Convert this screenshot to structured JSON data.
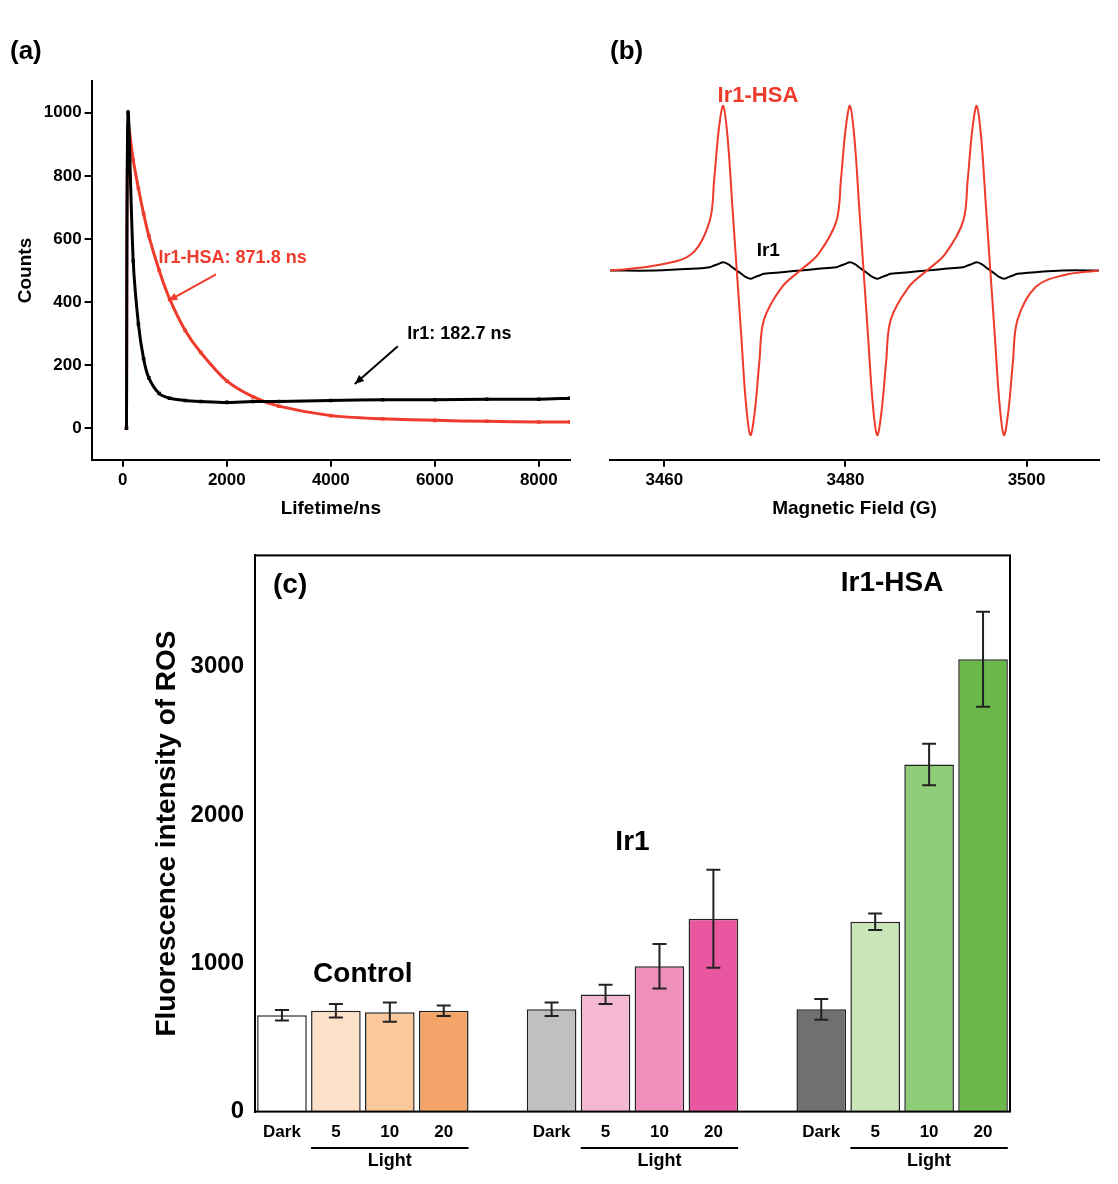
{
  "chart_data": [
    {
      "type": "line",
      "title": "(a)",
      "x_label": "Lifetime/ns",
      "y_label": "Counts",
      "x": [
        70,
        100,
        200,
        300,
        400,
        500,
        700,
        900,
        1200,
        1500,
        2000,
        2500,
        3000,
        4000,
        5000,
        6000,
        7000,
        8000,
        8600
      ],
      "series": [
        {
          "color": "#000000",
          "values": [
            0,
            1000,
            530,
            330,
            220,
            160,
            110,
            95,
            88,
            85,
            82,
            85,
            85,
            88,
            90,
            90,
            92,
            92,
            95
          ]
        },
        {
          "color": "#ee3b2c",
          "values": [
            0,
            960,
            850,
            760,
            680,
            610,
            500,
            410,
            310,
            240,
            150,
            100,
            70,
            40,
            30,
            25,
            22,
            20,
            20
          ]
        }
      ],
      "annotations": [
        {
          "text": "Ir1-HSA: 871.8 ns",
          "color": "#ee3b2c"
        },
        {
          "text": "Ir1: 182.7 ns",
          "color": "#000000"
        }
      ],
      "xlim": [
        -600,
        8600
      ],
      "xticks": [
        0,
        2000,
        4000,
        6000,
        8000
      ],
      "ylim": [
        -100,
        1100
      ],
      "yticks": [
        0,
        200,
        400,
        600,
        800,
        1000
      ],
      "grid": false,
      "marker": "square"
    },
    {
      "type": "line",
      "title": "(b)",
      "x_label": "Magnetic Field (G)",
      "x": [
        3454,
        3459,
        3463,
        3465,
        3465.5,
        3466,
        3466.5,
        3467,
        3467.5,
        3468,
        3468.5,
        3469,
        3469.5,
        3470,
        3470.5,
        3471,
        3473,
        3475,
        3477,
        3479,
        3479.5,
        3480,
        3480.5,
        3481,
        3481.5,
        3482,
        3482.5,
        3483,
        3483.5,
        3484,
        3484.5,
        3485,
        3487,
        3489,
        3491,
        3493,
        3493.5,
        3494,
        3494.5,
        3495,
        3495.5,
        3496,
        3496.5,
        3497,
        3497.5,
        3498,
        3498.5,
        3499,
        3501,
        3504,
        3508
      ],
      "series": [
        {
          "name": "Ir1-HSA",
          "color": "#ee3b2c",
          "values": [
            0,
            3,
            10,
            30,
            55,
            85,
            100,
            80,
            40,
            0,
            -40,
            -80,
            -100,
            -85,
            -55,
            -30,
            -10,
            0,
            10,
            30,
            55,
            85,
            100,
            80,
            40,
            0,
            -40,
            -80,
            -100,
            -85,
            -55,
            -30,
            -10,
            0,
            10,
            30,
            55,
            85,
            100,
            80,
            40,
            0,
            -40,
            -80,
            -100,
            -85,
            -55,
            -30,
            -10,
            -3,
            0
          ]
        },
        {
          "name": "Ir1",
          "color": "#000000",
          "values": [
            0,
            0,
            1,
            2,
            3,
            4,
            5,
            4,
            2,
            0,
            -2,
            -4,
            -5,
            -4,
            -3,
            -2,
            -1,
            0,
            1,
            2,
            3,
            4,
            5,
            4,
            2,
            0,
            -2,
            -4,
            -5,
            -4,
            -3,
            -2,
            -1,
            0,
            1,
            2,
            3,
            4,
            5,
            4,
            2,
            0,
            -2,
            -4,
            -5,
            -4,
            -3,
            -2,
            -1,
            0,
            0
          ]
        }
      ],
      "xlim": [
        3454,
        3508
      ],
      "xticks": [
        3460,
        3480,
        3500
      ],
      "ylim": [
        -115,
        115
      ],
      "grid": false,
      "tick_labels": "x"
    },
    {
      "type": "bar",
      "title": "(c)",
      "y_label": "Fluorescence intensity of ROS",
      "groups": [
        {
          "name": "Control",
          "categories": [
            "Dark",
            "5",
            "10",
            "20"
          ],
          "bracket": "Light",
          "values": [
            650,
            680,
            670,
            680
          ],
          "errors": [
            35,
            45,
            65,
            35
          ],
          "colors": [
            "#ffffff",
            "#fde0c8",
            "#fbc89c",
            "#f3a468"
          ]
        },
        {
          "name": "Ir1",
          "categories": [
            "Dark",
            "5",
            "10",
            "20"
          ],
          "bracket": "Light",
          "values": [
            690,
            790,
            980,
            1300
          ],
          "errors": [
            45,
            65,
            150,
            330
          ],
          "colors": [
            "#c0c0c0",
            "#f5b8d2",
            "#ef8fbb",
            "#e8579f"
          ]
        },
        {
          "name": "Ir1-HSA",
          "categories": [
            "Dark",
            "5",
            "10",
            "20"
          ],
          "bracket": "Light",
          "values": [
            690,
            1280,
            2340,
            3050
          ],
          "errors": [
            70,
            55,
            140,
            320
          ],
          "colors": [
            "#707070",
            "#c8e6b8",
            "#8fcc78",
            "#6ab84a"
          ]
        }
      ],
      "ylim": [
        0,
        3750
      ],
      "yticks": [
        0,
        1000,
        2000,
        3000
      ],
      "grid": false
    }
  ]
}
